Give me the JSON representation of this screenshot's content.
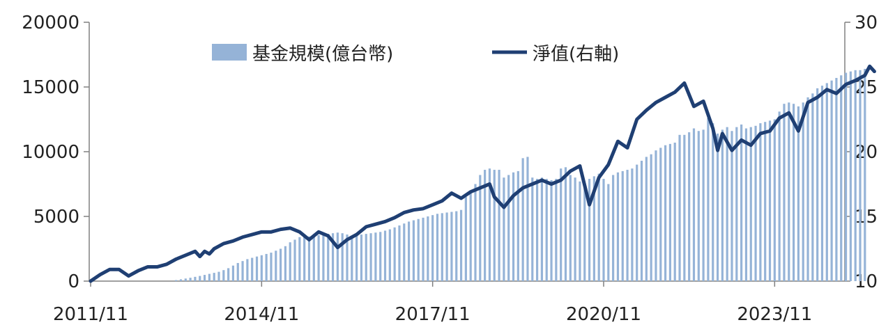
{
  "chart_data": {
    "type": "bar+line",
    "title": "",
    "xlabel": "",
    "ylabel": "",
    "ylim_left": [
      0,
      20000
    ],
    "ylim_right": [
      10,
      30
    ],
    "y_ticks_left": [
      "0",
      "5000",
      "10000",
      "15000",
      "20000"
    ],
    "y_ticks_right": [
      "10",
      "15",
      "20",
      "25",
      "30"
    ],
    "x_ticks": [
      "2011/11",
      "2014/11",
      "2017/11",
      "2020/11",
      "2023/11"
    ],
    "x_range": [
      "2011/11",
      "2024/12"
    ],
    "legend_position": "top-center",
    "grid": false,
    "colors": {
      "bars": "#95b3d7",
      "line": "#1f3f73",
      "axis": "#808080"
    },
    "series": [
      {
        "name": "基金規模(億台幣)",
        "type": "bar",
        "axis": "left",
        "points": [
          [
            "2013/05",
            80
          ],
          [
            "2013/06",
            140
          ],
          [
            "2013/07",
            200
          ],
          [
            "2013/08",
            260
          ],
          [
            "2013/09",
            330
          ],
          [
            "2013/10",
            400
          ],
          [
            "2013/11",
            480
          ],
          [
            "2013/12",
            560
          ],
          [
            "2014/01",
            640
          ],
          [
            "2014/02",
            720
          ],
          [
            "2014/03",
            850
          ],
          [
            "2014/04",
            1000
          ],
          [
            "2014/05",
            1200
          ],
          [
            "2014/06",
            1400
          ],
          [
            "2014/07",
            1550
          ],
          [
            "2014/08",
            1700
          ],
          [
            "2014/09",
            1800
          ],
          [
            "2014/10",
            1900
          ],
          [
            "2014/11",
            2000
          ],
          [
            "2014/12",
            2100
          ],
          [
            "2015/01",
            2200
          ],
          [
            "2015/02",
            2350
          ],
          [
            "2015/03",
            2500
          ],
          [
            "2015/04",
            2700
          ],
          [
            "2015/05",
            3000
          ],
          [
            "2015/06",
            3200
          ],
          [
            "2015/07",
            3400
          ],
          [
            "2015/08",
            3500
          ],
          [
            "2015/09",
            3450
          ],
          [
            "2015/10",
            3500
          ],
          [
            "2015/11",
            3550
          ],
          [
            "2015/12",
            3600
          ],
          [
            "2016/01",
            3650
          ],
          [
            "2016/02",
            3700
          ],
          [
            "2016/03",
            3750
          ],
          [
            "2016/04",
            3700
          ],
          [
            "2016/05",
            3600
          ],
          [
            "2016/06",
            3500
          ],
          [
            "2016/07",
            3550
          ],
          [
            "2016/08",
            3600
          ],
          [
            "2016/09",
            3650
          ],
          [
            "2016/10",
            3700
          ],
          [
            "2016/11",
            3750
          ],
          [
            "2016/12",
            3800
          ],
          [
            "2017/01",
            3900
          ],
          [
            "2017/02",
            4000
          ],
          [
            "2017/03",
            4150
          ],
          [
            "2017/04",
            4300
          ],
          [
            "2017/05",
            4450
          ],
          [
            "2017/06",
            4600
          ],
          [
            "2017/07",
            4700
          ],
          [
            "2017/08",
            4800
          ],
          [
            "2017/09",
            4900
          ],
          [
            "2017/10",
            5000
          ],
          [
            "2017/11",
            5100
          ],
          [
            "2017/12",
            5200
          ],
          [
            "2018/01",
            5250
          ],
          [
            "2018/02",
            5300
          ],
          [
            "2018/03",
            5350
          ],
          [
            "2018/04",
            5400
          ],
          [
            "2018/05",
            5500
          ],
          [
            "2018/06",
            6500
          ],
          [
            "2018/07",
            7000
          ],
          [
            "2018/08",
            7500
          ],
          [
            "2018/09",
            8200
          ],
          [
            "2018/10",
            8600
          ],
          [
            "2018/11",
            8700
          ],
          [
            "2018/12",
            8600
          ],
          [
            "2019/01",
            8600
          ],
          [
            "2019/02",
            8000
          ],
          [
            "2019/03",
            8200
          ],
          [
            "2019/04",
            8400
          ],
          [
            "2019/05",
            8500
          ],
          [
            "2019/06",
            9500
          ],
          [
            "2019/07",
            9600
          ],
          [
            "2019/08",
            8000
          ],
          [
            "2019/09",
            7900
          ],
          [
            "2019/10",
            8000
          ],
          [
            "2019/11",
            7900
          ],
          [
            "2019/12",
            7800
          ],
          [
            "2020/01",
            7900
          ],
          [
            "2020/02",
            8700
          ],
          [
            "2020/03",
            8800
          ],
          [
            "2020/04",
            8200
          ],
          [
            "2020/05",
            8000
          ],
          [
            "2020/06",
            7700
          ],
          [
            "2020/07",
            7600
          ],
          [
            "2020/08",
            7900
          ],
          [
            "2020/09",
            8100
          ],
          [
            "2020/10",
            8300
          ],
          [
            "2020/11",
            7900
          ],
          [
            "2020/12",
            7500
          ],
          [
            "2021/01",
            8200
          ],
          [
            "2021/02",
            8400
          ],
          [
            "2021/03",
            8500
          ],
          [
            "2021/04",
            8600
          ],
          [
            "2021/05",
            8700
          ],
          [
            "2021/06",
            9000
          ],
          [
            "2021/07",
            9300
          ],
          [
            "2021/08",
            9600
          ],
          [
            "2021/09",
            9800
          ],
          [
            "2021/10",
            10100
          ],
          [
            "2021/11",
            10300
          ],
          [
            "2021/12",
            10500
          ],
          [
            "2022/01",
            10600
          ],
          [
            "2022/02",
            10700
          ],
          [
            "2022/03",
            11300
          ],
          [
            "2022/04",
            11300
          ],
          [
            "2022/05",
            11500
          ],
          [
            "2022/06",
            11800
          ],
          [
            "2022/07",
            11600
          ],
          [
            "2022/08",
            11700
          ],
          [
            "2022/09",
            12600
          ],
          [
            "2022/10",
            12200
          ],
          [
            "2022/11",
            11400
          ],
          [
            "2022/12",
            11700
          ],
          [
            "2023/01",
            11900
          ],
          [
            "2023/02",
            11600
          ],
          [
            "2023/03",
            11900
          ],
          [
            "2023/04",
            12100
          ],
          [
            "2023/05",
            11800
          ],
          [
            "2023/06",
            11900
          ],
          [
            "2023/07",
            12000
          ],
          [
            "2023/08",
            12200
          ],
          [
            "2023/09",
            12300
          ],
          [
            "2023/10",
            12400
          ],
          [
            "2023/11",
            12500
          ],
          [
            "2023/12",
            13100
          ],
          [
            "2024/01",
            13700
          ],
          [
            "2024/02",
            13800
          ],
          [
            "2024/03",
            13700
          ],
          [
            "2024/04",
            13500
          ],
          [
            "2024/05",
            13800
          ],
          [
            "2024/06",
            14200
          ],
          [
            "2024/07",
            14500
          ],
          [
            "2024/08",
            14900
          ],
          [
            "2024/09",
            15100
          ],
          [
            "2024/10",
            15300
          ],
          [
            "2024/11",
            15500
          ],
          [
            "2024/12",
            15700
          ],
          [
            "2025/01",
            15900
          ],
          [
            "2025/02",
            16100
          ],
          [
            "2025/03",
            16200
          ],
          [
            "2025/04",
            16300
          ],
          [
            "2025/05",
            16300
          ],
          [
            "2025/06",
            16400
          ]
        ]
      },
      {
        "name": "淨值(右軸)",
        "type": "line",
        "axis": "right",
        "points": [
          [
            "2011/11",
            10.0
          ],
          [
            "2012/01",
            10.5
          ],
          [
            "2012/03",
            10.9
          ],
          [
            "2012/05",
            10.9
          ],
          [
            "2012/07",
            10.4
          ],
          [
            "2012/09",
            10.8
          ],
          [
            "2012/11",
            11.1
          ],
          [
            "2013/01",
            11.1
          ],
          [
            "2013/03",
            11.3
          ],
          [
            "2013/05",
            11.7
          ],
          [
            "2013/07",
            12.0
          ],
          [
            "2013/09",
            12.3
          ],
          [
            "2013/10",
            11.9
          ],
          [
            "2013/11",
            12.3
          ],
          [
            "2013/12",
            12.1
          ],
          [
            "2014/01",
            12.5
          ],
          [
            "2014/03",
            12.9
          ],
          [
            "2014/05",
            13.1
          ],
          [
            "2014/07",
            13.4
          ],
          [
            "2014/09",
            13.6
          ],
          [
            "2014/11",
            13.8
          ],
          [
            "2015/01",
            13.8
          ],
          [
            "2015/03",
            14.0
          ],
          [
            "2015/05",
            14.1
          ],
          [
            "2015/07",
            13.8
          ],
          [
            "2015/09",
            13.2
          ],
          [
            "2015/11",
            13.8
          ],
          [
            "2016/01",
            13.5
          ],
          [
            "2016/03",
            12.6
          ],
          [
            "2016/05",
            13.2
          ],
          [
            "2016/07",
            13.6
          ],
          [
            "2016/09",
            14.2
          ],
          [
            "2016/11",
            14.4
          ],
          [
            "2017/01",
            14.6
          ],
          [
            "2017/03",
            14.9
          ],
          [
            "2017/05",
            15.3
          ],
          [
            "2017/07",
            15.5
          ],
          [
            "2017/09",
            15.6
          ],
          [
            "2017/11",
            15.9
          ],
          [
            "2018/01",
            16.2
          ],
          [
            "2018/03",
            16.8
          ],
          [
            "2018/05",
            16.4
          ],
          [
            "2018/07",
            16.9
          ],
          [
            "2018/09",
            17.2
          ],
          [
            "2018/11",
            17.5
          ],
          [
            "2018/12",
            16.5
          ],
          [
            "2019/02",
            15.7
          ],
          [
            "2019/04",
            16.6
          ],
          [
            "2019/06",
            17.2
          ],
          [
            "2019/08",
            17.5
          ],
          [
            "2019/10",
            17.8
          ],
          [
            "2019/12",
            17.5
          ],
          [
            "2020/02",
            17.8
          ],
          [
            "2020/04",
            18.5
          ],
          [
            "2020/06",
            18.9
          ],
          [
            "2020/08",
            15.9
          ],
          [
            "2020/10",
            18.0
          ],
          [
            "2020/12",
            19.0
          ],
          [
            "2021/02",
            20.8
          ],
          [
            "2021/04",
            20.3
          ],
          [
            "2021/06",
            22.5
          ],
          [
            "2021/08",
            23.2
          ],
          [
            "2021/10",
            23.8
          ],
          [
            "2021/12",
            24.2
          ],
          [
            "2022/02",
            24.6
          ],
          [
            "2022/04",
            25.3
          ],
          [
            "2022/06",
            23.5
          ],
          [
            "2022/08",
            23.9
          ],
          [
            "2022/10",
            21.8
          ],
          [
            "2022/11",
            20.1
          ],
          [
            "2022/12",
            21.4
          ],
          [
            "2023/02",
            20.1
          ],
          [
            "2023/04",
            20.9
          ],
          [
            "2023/06",
            20.5
          ],
          [
            "2023/08",
            21.4
          ],
          [
            "2023/10",
            21.6
          ],
          [
            "2023/12",
            22.6
          ],
          [
            "2024/02",
            23.0
          ],
          [
            "2024/04",
            21.6
          ],
          [
            "2024/06",
            23.8
          ],
          [
            "2024/08",
            24.2
          ],
          [
            "2024/10",
            24.8
          ],
          [
            "2024/12",
            24.5
          ],
          [
            "2025/02",
            25.2
          ],
          [
            "2025/04",
            25.5
          ],
          [
            "2025/06",
            25.9
          ],
          [
            "2025/07",
            26.6
          ],
          [
            "2025/08",
            26.2
          ]
        ]
      }
    ]
  }
}
